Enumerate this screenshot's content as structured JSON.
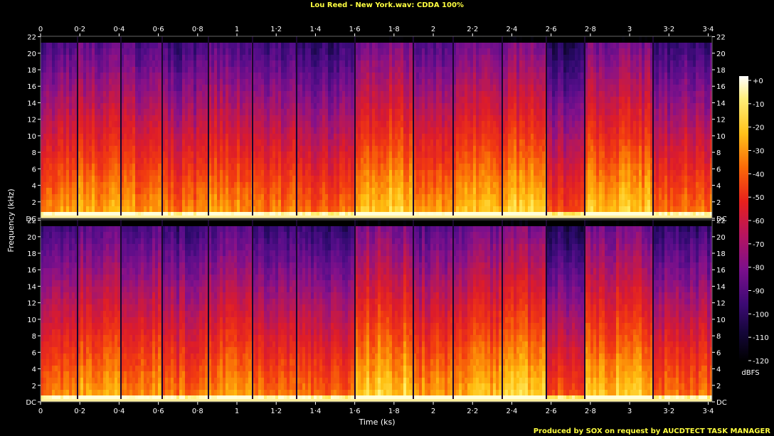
{
  "chart_data": {
    "type": "heatmap",
    "title": "Lou Reed - New York.wav: CDDA 100%",
    "xlabel": "Time (ks)",
    "ylabel": "Frequency (kHz)",
    "footer": "Produced by SOX on request by AUCDTECT TASK MANAGER",
    "colorbar_unit": "dBFS",
    "x_ticks": [
      "0",
      "0·2",
      "0·4",
      "0·6",
      "0·8",
      "1",
      "1·2",
      "1·4",
      "1·6",
      "1·8",
      "2",
      "2·2",
      "2·4",
      "2·6",
      "2·8",
      "3",
      "3·2",
      "3·4"
    ],
    "x_tick_values": [
      0,
      0.2,
      0.4,
      0.6,
      0.8,
      1.0,
      1.2,
      1.4,
      1.6,
      1.8,
      2.0,
      2.2,
      2.4,
      2.6,
      2.8,
      3.0,
      3.2,
      3.4
    ],
    "xlim": [
      0,
      3.42
    ],
    "y_ticks": [
      "DC",
      "2",
      "4",
      "6",
      "8",
      "10",
      "12",
      "14",
      "16",
      "18",
      "20",
      "22"
    ],
    "y_tick_values": [
      0,
      2,
      4,
      6,
      8,
      10,
      12,
      14,
      16,
      18,
      20,
      22
    ],
    "ylim": [
      0,
      22.05
    ],
    "colorbar_ticks": [
      "+0",
      "-10",
      "-20",
      "-30",
      "-40",
      "-50",
      "-60",
      "-70",
      "-80",
      "-90",
      "-100",
      "-110",
      "-120"
    ],
    "colorbar_values": [
      0,
      -10,
      -20,
      -30,
      -40,
      -50,
      -60,
      -70,
      -80,
      -90,
      -100,
      -110,
      -120
    ],
    "channels": [
      "upper",
      "lower"
    ],
    "track_boundaries_ks": [
      0,
      0.19,
      0.41,
      0.62,
      0.855,
      1.08,
      1.305,
      1.6,
      1.9,
      2.1,
      2.35,
      2.575,
      2.77,
      3.12,
      3.42
    ],
    "segments": [
      {
        "start": 0.0,
        "end": 0.19,
        "level": 0.55
      },
      {
        "start": 0.19,
        "end": 0.41,
        "level": 0.7
      },
      {
        "start": 0.41,
        "end": 0.62,
        "level": 0.6
      },
      {
        "start": 0.62,
        "end": 0.855,
        "level": 0.45
      },
      {
        "start": 0.855,
        "end": 1.08,
        "level": 0.62
      },
      {
        "start": 1.08,
        "end": 1.305,
        "level": 0.5
      },
      {
        "start": 1.305,
        "end": 1.6,
        "level": 0.4
      },
      {
        "start": 1.6,
        "end": 1.9,
        "level": 0.85
      },
      {
        "start": 1.9,
        "end": 2.1,
        "level": 0.6
      },
      {
        "start": 2.1,
        "end": 2.35,
        "level": 0.75
      },
      {
        "start": 2.35,
        "end": 2.575,
        "level": 0.85
      },
      {
        "start": 2.575,
        "end": 2.77,
        "level": 0.3
      },
      {
        "start": 2.77,
        "end": 3.12,
        "level": 0.8
      },
      {
        "start": 3.12,
        "end": 3.42,
        "level": 0.45
      }
    ],
    "grid": false
  },
  "colors": {
    "background": "#000000",
    "title": "#ffff40",
    "footer": "#ffff40",
    "axis_text": "#ffffff",
    "palette": [
      "#000000",
      "#0a0526",
      "#2a0a6a",
      "#560d8a",
      "#85118a",
      "#b4175c",
      "#dd1c2a",
      "#f23a10",
      "#fb7c06",
      "#ffbe10",
      "#ffec60",
      "#ffffd8"
    ]
  }
}
